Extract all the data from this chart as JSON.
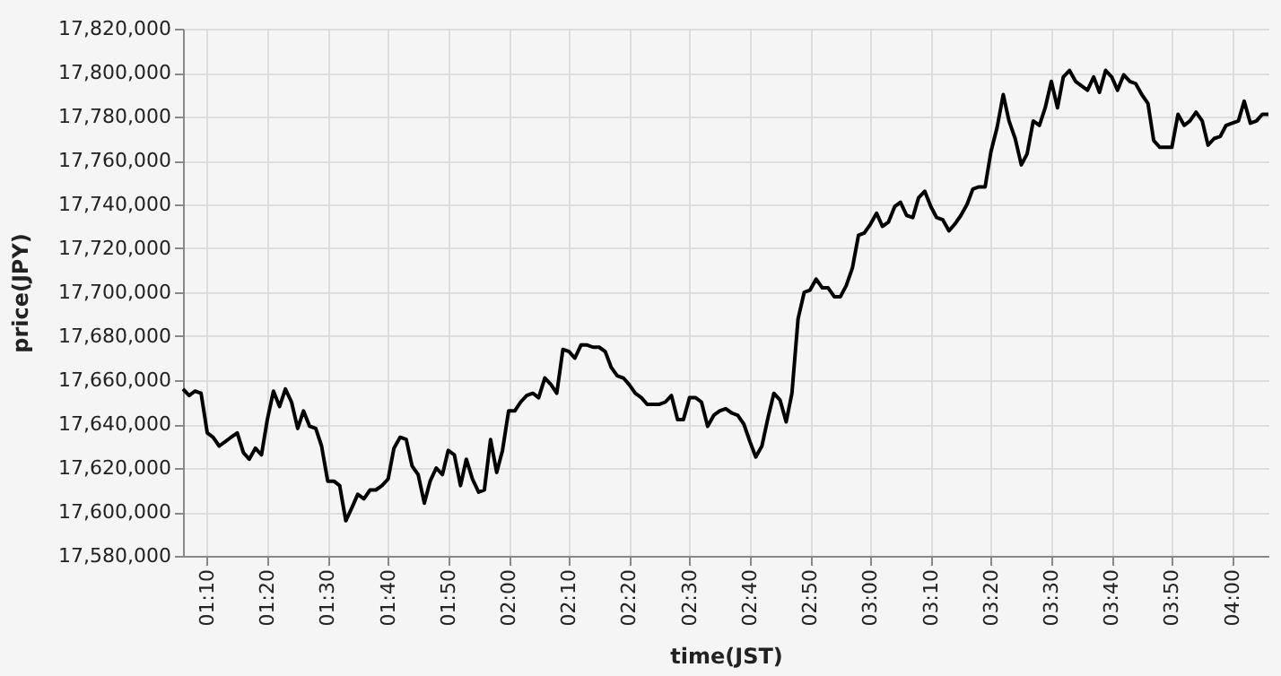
{
  "chart_data": {
    "type": "line",
    "xlabel": "time(JST)",
    "ylabel": "price(JPY)",
    "x": [
      1.1,
      1.117,
      1.133,
      1.15,
      1.167,
      1.183,
      1.2,
      1.233,
      1.25,
      1.267,
      1.283,
      1.3,
      1.317,
      1.333,
      1.35,
      1.367,
      1.383,
      1.4,
      1.417,
      1.433,
      1.45,
      1.467,
      1.483,
      1.5,
      1.517,
      1.533,
      1.55,
      1.567,
      1.583,
      1.6,
      1.617,
      1.633,
      1.65,
      1.667,
      1.683,
      1.7,
      1.717,
      1.733,
      1.75,
      1.767,
      1.783,
      1.8,
      1.817,
      1.833,
      1.85,
      1.867,
      1.883,
      1.9,
      1.917,
      1.933,
      1.95,
      1.967,
      1.983,
      2,
      2.017,
      2.033,
      2.05,
      2.067,
      2.083,
      2.1,
      2.117,
      2.133,
      2.15,
      2.167,
      2.183,
      2.2,
      2.217,
      2.233,
      2.25,
      2.267,
      2.283,
      2.3,
      2.317,
      2.333,
      2.35,
      2.367,
      2.383,
      2.4,
      2.417,
      2.433,
      2.45,
      2.467,
      2.483,
      2.5,
      2.517,
      2.533,
      2.55,
      2.567,
      2.583,
      2.6,
      2.617,
      2.633,
      2.65,
      2.667,
      2.683,
      2.7,
      2.717,
      2.733,
      2.75,
      2.767,
      2.783,
      2.8,
      2.817,
      2.833,
      2.85,
      2.867,
      2.883,
      2.9,
      2.917,
      2.933,
      2.95,
      2.967,
      2.983,
      3,
      3.017,
      3.033,
      3.05,
      3.067,
      3.083,
      3.1,
      3.117,
      3.133,
      3.15,
      3.167,
      3.183,
      3.2,
      3.217,
      3.233,
      3.25,
      3.267,
      3.283,
      3.3,
      3.317,
      3.333,
      3.35,
      3.367,
      3.383,
      3.4,
      3.417,
      3.433,
      3.45,
      3.467,
      3.483,
      3.5,
      3.517,
      3.533,
      3.55,
      3.567,
      3.583,
      3.6,
      3.617,
      3.633,
      3.65,
      3.667,
      3.683,
      3.7,
      3.717,
      3.733,
      3.75,
      3.767,
      3.783,
      3.8,
      3.817,
      3.833,
      3.85,
      3.867,
      3.883,
      3.9,
      3.917,
      3.933,
      3.95,
      3.967,
      3.983,
      4,
      4.017,
      4.033,
      4.05,
      4.067,
      4.083,
      4.1
    ],
    "series": [
      {
        "color": "#000000",
        "values": [
          17656000,
          17653000,
          17655000,
          17654000,
          17636000,
          17634000,
          17630000,
          17634000,
          17636000,
          17627000,
          17624000,
          17629000,
          17626000,
          17642000,
          17655000,
          17648000,
          17656000,
          17650000,
          17638000,
          17646000,
          17639000,
          17638000,
          17630000,
          17614000,
          17614000,
          17612000,
          17596000,
          17602000,
          17608000,
          17606000,
          17610000,
          17610000,
          17612000,
          17615000,
          17629000,
          17634000,
          17633000,
          17621000,
          17617000,
          17604000,
          17614000,
          17620000,
          17617000,
          17628000,
          17626000,
          17612000,
          17624000,
          17615000,
          17609000,
          17610000,
          17633000,
          17618000,
          17628000,
          17646000,
          17646000,
          17650000,
          17653000,
          17654000,
          17652000,
          17661000,
          17658000,
          17654000,
          17674000,
          17673000,
          17670000,
          17676000,
          17676000,
          17675000,
          17675000,
          17673000,
          17666000,
          17662000,
          17661000,
          17658000,
          17654000,
          17652000,
          17649000,
          17649000,
          17649000,
          17650000,
          17653000,
          17642000,
          17642000,
          17652000,
          17652000,
          17650000,
          17639000,
          17644000,
          17646000,
          17647000,
          17645000,
          17644000,
          17640000,
          17632000,
          17625000,
          17630000,
          17643000,
          17654000,
          17651000,
          17641000,
          17654000,
          17688000,
          17700000,
          17701000,
          17706000,
          17702000,
          17702000,
          17698000,
          17698000,
          17703000,
          17711000,
          17726000,
          17727000,
          17731000,
          17736000,
          17730000,
          17732000,
          17739000,
          17741000,
          17735000,
          17734000,
          17743000,
          17746000,
          17739000,
          17734000,
          17733000,
          17728000,
          17731000,
          17735000,
          17740000,
          17747000,
          17748000,
          17748000,
          17764000,
          17775000,
          17790000,
          17778000,
          17770000,
          17758000,
          17763000,
          17778000,
          17776000,
          17784000,
          17796000,
          17784000,
          17798000,
          17801000,
          17796000,
          17794000,
          17792000,
          17798000,
          17791000,
          17801000,
          17798000,
          17792000,
          17799000,
          17796000,
          17795000,
          17790000,
          17786000,
          17769000,
          17766000,
          17766000,
          17766000,
          17781000,
          17776000,
          17778000,
          17782000,
          17778000,
          17767000,
          17770000,
          17771000,
          17776000,
          17777000,
          17778000,
          17787000,
          17777000,
          17778000,
          17781000,
          17781000
        ]
      }
    ],
    "xlim": [
      1.1,
      4.1
    ],
    "xticks": [
      {
        "value": 1.1667,
        "label": "01:10"
      },
      {
        "value": 1.3333,
        "label": "01:20"
      },
      {
        "value": 1.5,
        "label": "01:30"
      },
      {
        "value": 1.6667,
        "label": "01:40"
      },
      {
        "value": 1.8333,
        "label": "01:50"
      },
      {
        "value": 2,
        "label": "02:00"
      },
      {
        "value": 2.1667,
        "label": "02:10"
      },
      {
        "value": 2.3333,
        "label": "02:20"
      },
      {
        "value": 2.5,
        "label": "02:30"
      },
      {
        "value": 2.6667,
        "label": "02:40"
      },
      {
        "value": 2.8333,
        "label": "02:50"
      },
      {
        "value": 3,
        "label": "03:00"
      },
      {
        "value": 3.1667,
        "label": "03:10"
      },
      {
        "value": 3.3333,
        "label": "03:20"
      },
      {
        "value": 3.5,
        "label": "03:30"
      },
      {
        "value": 3.6667,
        "label": "03:40"
      },
      {
        "value": 3.8333,
        "label": "03:50"
      },
      {
        "value": 4,
        "label": "04:00"
      }
    ],
    "ylim": [
      17580000,
      17820000
    ],
    "yticks": [
      {
        "value": 17580000,
        "label": "17,580,000"
      },
      {
        "value": 17600000,
        "label": "17,600,000"
      },
      {
        "value": 17620000,
        "label": "17,620,000"
      },
      {
        "value": 17640000,
        "label": "17,640,000"
      },
      {
        "value": 17660000,
        "label": "17,660,000"
      },
      {
        "value": 17680000,
        "label": "17,680,000"
      },
      {
        "value": 17700000,
        "label": "17,700,000"
      },
      {
        "value": 17720000,
        "label": "17,720,000"
      },
      {
        "value": 17740000,
        "label": "17,740,000"
      },
      {
        "value": 17760000,
        "label": "17,760,000"
      },
      {
        "value": 17780000,
        "label": "17,780,000"
      },
      {
        "value": 17800000,
        "label": "17,800,000"
      },
      {
        "value": 17820000,
        "label": "17,820,000"
      }
    ],
    "grid": true,
    "marker": "none",
    "line_style": "solid"
  }
}
